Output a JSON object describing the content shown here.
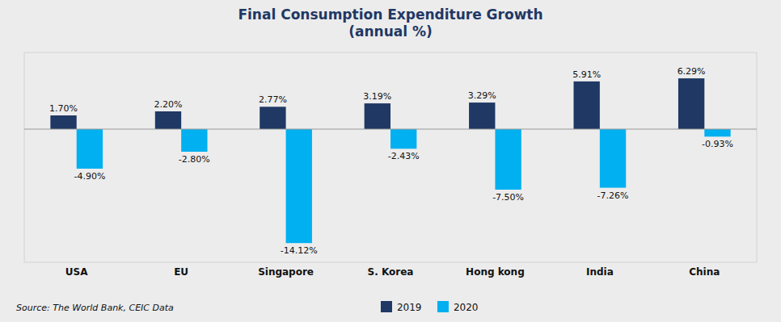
{
  "chart_data": {
    "type": "bar",
    "title": "Final Consumption Expenditure Growth\n(annual %)",
    "categories": [
      "USA",
      "EU",
      "Singapore",
      "S. Korea",
      "Hong kong",
      "India",
      "China"
    ],
    "series": [
      {
        "name": "2019",
        "color": "#1f3864",
        "values": [
          1.7,
          2.2,
          2.77,
          3.19,
          3.29,
          5.91,
          6.29
        ],
        "value_labels": [
          "1.70%",
          "2.20%",
          "2.77%",
          "3.19%",
          "3.29%",
          "5.91%",
          "6.29%"
        ]
      },
      {
        "name": "2020",
        "color": "#00b0f0",
        "values": [
          -4.9,
          -2.8,
          -14.12,
          -2.43,
          -7.5,
          -7.26,
          -0.93
        ],
        "value_labels": [
          "-4.90%",
          "-2.80%",
          "-14.12%",
          "-2.43%",
          "-7.50%",
          "-7.26%",
          "-0.93%"
        ]
      }
    ],
    "ylim": [
      -16.5,
      9.5
    ],
    "yticks": [
      0
    ],
    "tick_labels": "x",
    "grid": false,
    "data_labels": true,
    "legend": "bottom",
    "annotations": [
      "Source: The World Bank, CEIC Data"
    ]
  }
}
